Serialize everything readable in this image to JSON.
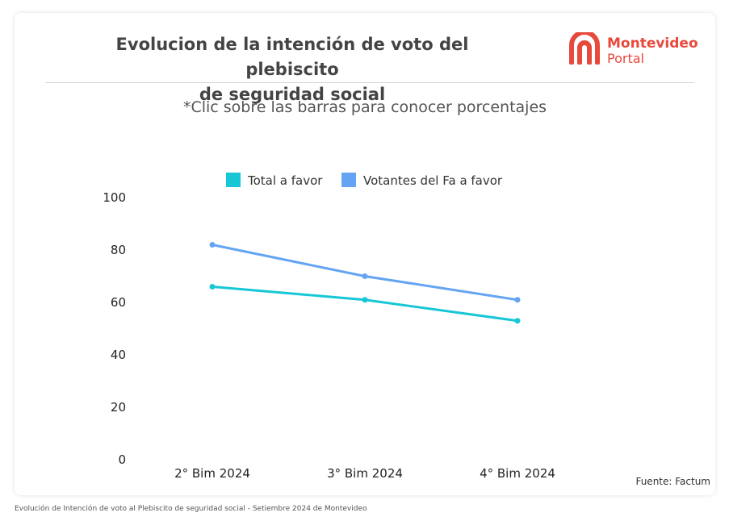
{
  "header": {
    "title_line1": "Evolucion de la intención de voto del plebiscito",
    "title_line2": "de seguridad social",
    "logo": {
      "icon": "montevideo-portal-arch-logo",
      "line1": "Montevideo",
      "line2": "Portal",
      "color": "#e8493d"
    }
  },
  "subtitle": "*Clic sobre las barras para conocer porcentajes",
  "chart_data": {
    "type": "line",
    "categories": [
      "2° Bim 2024",
      "3° Bim 2024",
      "4° Bim 2024"
    ],
    "series": [
      {
        "name": "Total a favor",
        "values": [
          66,
          61,
          53
        ],
        "color": "#17c7d6"
      },
      {
        "name": "Votantes del Fa a favor",
        "values": [
          82,
          70,
          61
        ],
        "color": "#64a4f2"
      }
    ],
    "ylim": [
      0,
      100
    ],
    "yticks": [
      0,
      20,
      40,
      60,
      80,
      100
    ],
    "grid": false,
    "legend": "top-center"
  },
  "source": "Fuente: Factum",
  "caption": "Evolución de Intención de voto al Plebiscito de seguridad social - Setiembre 2024 de Montevideo"
}
